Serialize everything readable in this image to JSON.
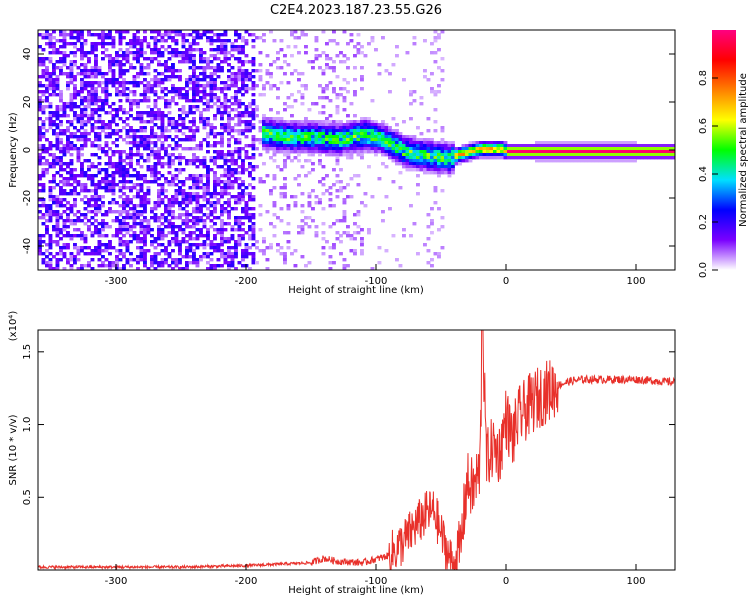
{
  "title": "C2E4.2023.187.23.55.G26",
  "chart_data": [
    {
      "type": "heatmap",
      "xlabel": "Height of straight line (km)",
      "ylabel": "Frequency (Hz)",
      "xlim": [
        -360,
        130
      ],
      "ylim": [
        -50,
        50
      ],
      "x_ticks": [
        -300,
        -200,
        -100,
        0,
        100
      ],
      "y_ticks": [
        -40,
        -20,
        0,
        20,
        40
      ],
      "x_tick_labels": [
        "-300",
        "-200",
        "-100",
        "0",
        "100"
      ],
      "y_tick_labels": [
        "-40",
        "-20",
        "0",
        "20",
        "40"
      ],
      "colorbar": {
        "label": "Normalized spectral amplitude",
        "range": [
          0,
          1
        ],
        "ticks": [
          0,
          0.2,
          0.4,
          0.6,
          0.8
        ],
        "tick_labels": [
          "0.0",
          "0.2",
          "0.4",
          "0.6",
          "0.8"
        ],
        "colormap": [
          "#ffffff",
          "#7a00ff",
          "#0000ff",
          "#00e0ff",
          "#00ff00",
          "#ffff00",
          "#ff8000",
          "#ff0000",
          "#ff0080"
        ]
      },
      "ridge": [
        {
          "x": -190,
          "y": 8
        },
        {
          "x": -170,
          "y": 6
        },
        {
          "x": -150,
          "y": 6
        },
        {
          "x": -130,
          "y": 5
        },
        {
          "x": -110,
          "y": 7
        },
        {
          "x": -95,
          "y": 5
        },
        {
          "x": -80,
          "y": 0
        },
        {
          "x": -60,
          "y": -2
        },
        {
          "x": -45,
          "y": -3
        },
        {
          "x": -35,
          "y": -1
        },
        {
          "x": -20,
          "y": 1
        },
        {
          "x": -5,
          "y": 1
        },
        {
          "x": 0,
          "y": 0
        },
        {
          "x": 50,
          "y": 0
        },
        {
          "x": 130,
          "y": 0
        }
      ]
    },
    {
      "type": "line",
      "xlabel": "Height of straight line (km)",
      "ylabel": "SNR (10 * v/v)",
      "y_multiplier": "(x10⁴)",
      "xlim": [
        -360,
        130
      ],
      "ylim": [
        0,
        1.65
      ],
      "x_ticks": [
        -300,
        -200,
        -100,
        0,
        100
      ],
      "y_ticks": [
        0.5,
        1.0,
        1.5
      ],
      "x_tick_labels": [
        "-300",
        "-200",
        "-100",
        "0",
        "100"
      ],
      "y_tick_labels": [
        "0.5",
        "1.0",
        "1.5"
      ],
      "line_color": "#e8302a",
      "series": [
        {
          "x": [
            -360,
            -300,
            -250,
            -200,
            -150,
            -140,
            -130,
            -110,
            -90,
            -80,
            -70,
            -60,
            -55,
            -50,
            -45,
            -40,
            -35,
            -30,
            -25,
            -20,
            -18,
            -15,
            -10,
            -5,
            0,
            5,
            10,
            20,
            30,
            40,
            50,
            60,
            80,
            100,
            115,
            130
          ],
          "y": [
            0.02,
            0.02,
            0.02,
            0.03,
            0.05,
            0.08,
            0.06,
            0.05,
            0.1,
            0.18,
            0.3,
            0.4,
            0.4,
            0.25,
            0.12,
            0.02,
            0.15,
            0.6,
            0.55,
            0.7,
            1.65,
            0.75,
            0.85,
            0.8,
            1.05,
            0.9,
            1.05,
            1.15,
            1.22,
            1.27,
            1.3,
            1.31,
            1.31,
            1.31,
            1.3,
            1.29
          ]
        }
      ]
    }
  ]
}
